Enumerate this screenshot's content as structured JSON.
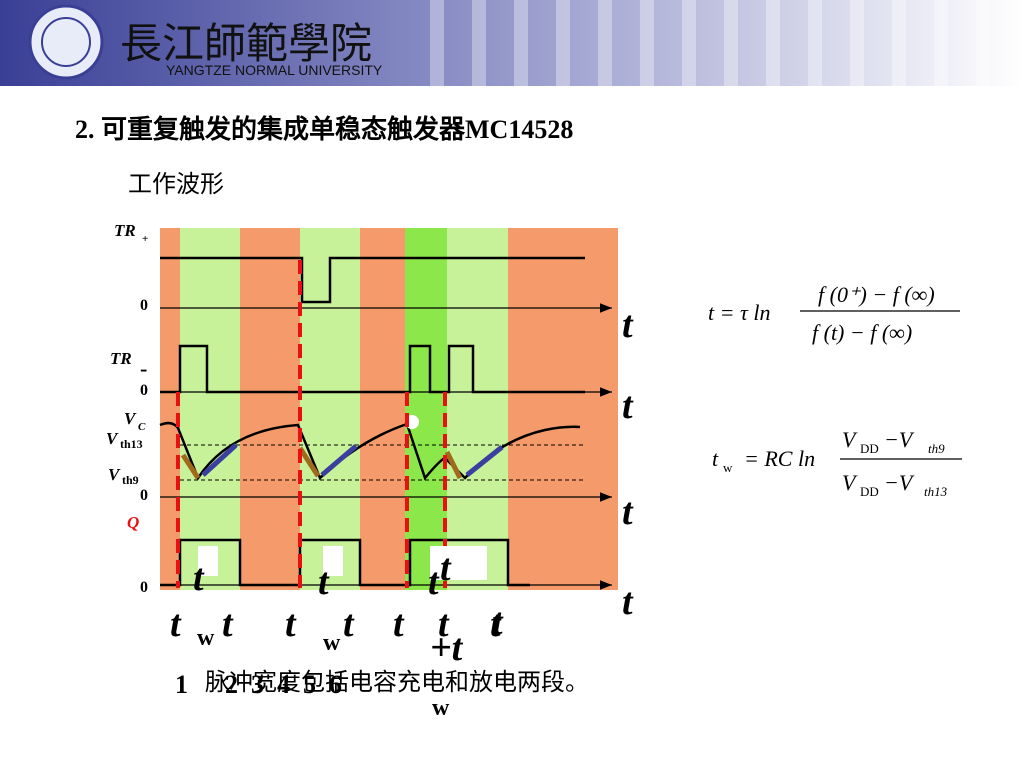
{
  "header": {
    "logo_text": "長江師範學院",
    "university": "YANGTZE NORMAL UNIVERSITY"
  },
  "title": "2. 可重复触发的集成单稳态触发器MC14528",
  "subtitle": "工作波形",
  "diagram": {
    "labels": [
      "TR",
      "+",
      "0",
      "TR",
      "-",
      "0",
      "V",
      "C",
      "V",
      "th13",
      "V",
      "th9",
      "0",
      "Q",
      "0"
    ],
    "axis_names": [
      "t",
      "t",
      "t",
      "t"
    ],
    "time_labels": [
      "t",
      "t",
      "t",
      "t",
      "t",
      "t",
      "t",
      "t",
      "+t",
      "t",
      "w",
      "w",
      "w"
    ],
    "tw_labels": [
      "t",
      "t",
      "t"
    ]
  },
  "formulas": {
    "f1": {
      "lhs": "t = τ ln",
      "num": "f (0⁺) − f (∞)",
      "den": "f (t) − f (∞)"
    },
    "f2": {
      "lhs": "t",
      "lhs_sub": "w",
      "eq": "= RC ln",
      "num_v": "V",
      "num_dd": "DD",
      "num_mid": " −V",
      "num_th": "th9",
      "den_v": "V",
      "den_dd": "DD",
      "den_mid": " −V",
      "den_th": "th13"
    }
  },
  "note": {
    "number": "1",
    "text": "脉冲宽度包括电容充电和放电两段。",
    "overlap": "2  3  4  5  6"
  }
}
